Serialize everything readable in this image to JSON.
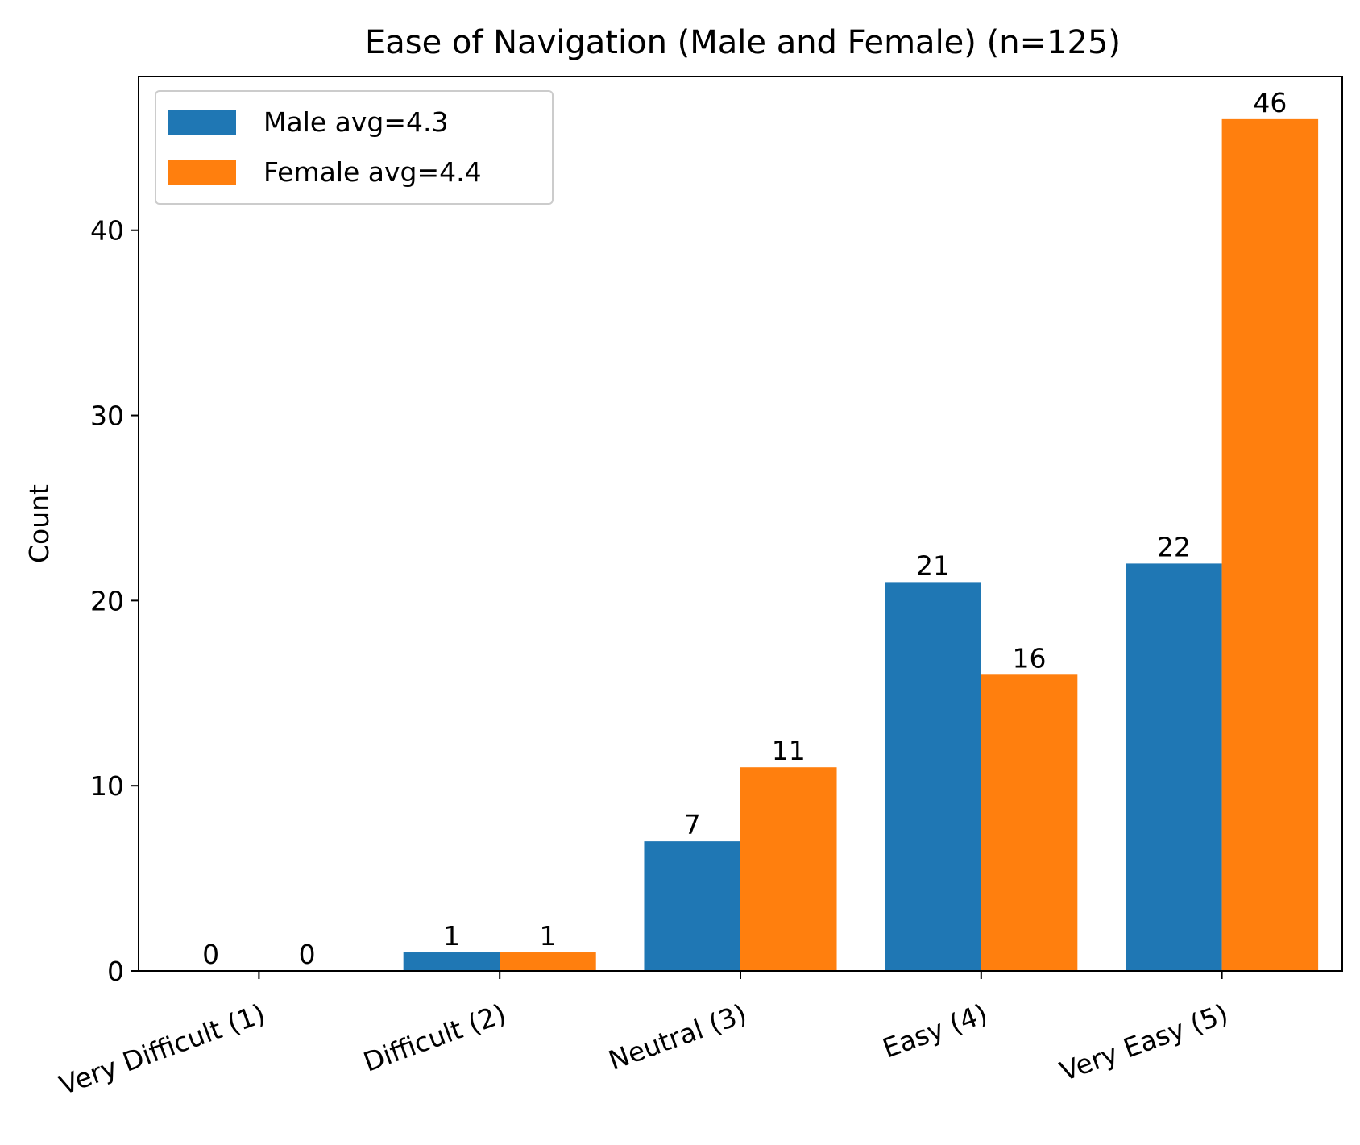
{
  "chart_data": {
    "type": "bar",
    "title": "Ease of Navigation (Male and Female) (n=125)",
    "xlabel": "",
    "ylabel": "Count",
    "categories": [
      "Very Difficult (1)",
      "Difficult (2)",
      "Neutral (3)",
      "Easy (4)",
      "Very Easy (5)"
    ],
    "series": [
      {
        "name": "Male avg=4.3",
        "values": [
          0,
          1,
          7,
          21,
          22
        ],
        "color": "#1f77b4"
      },
      {
        "name": "Female avg=4.4",
        "values": [
          0,
          1,
          11,
          16,
          46
        ],
        "color": "#ff7f0e"
      }
    ],
    "ylim": [
      0,
      48.3
    ],
    "yticks": [
      0,
      10,
      20,
      30,
      40
    ],
    "grid": false,
    "legend": "top-left",
    "tick_label_rotation_deg": 20,
    "data_labels": true
  }
}
